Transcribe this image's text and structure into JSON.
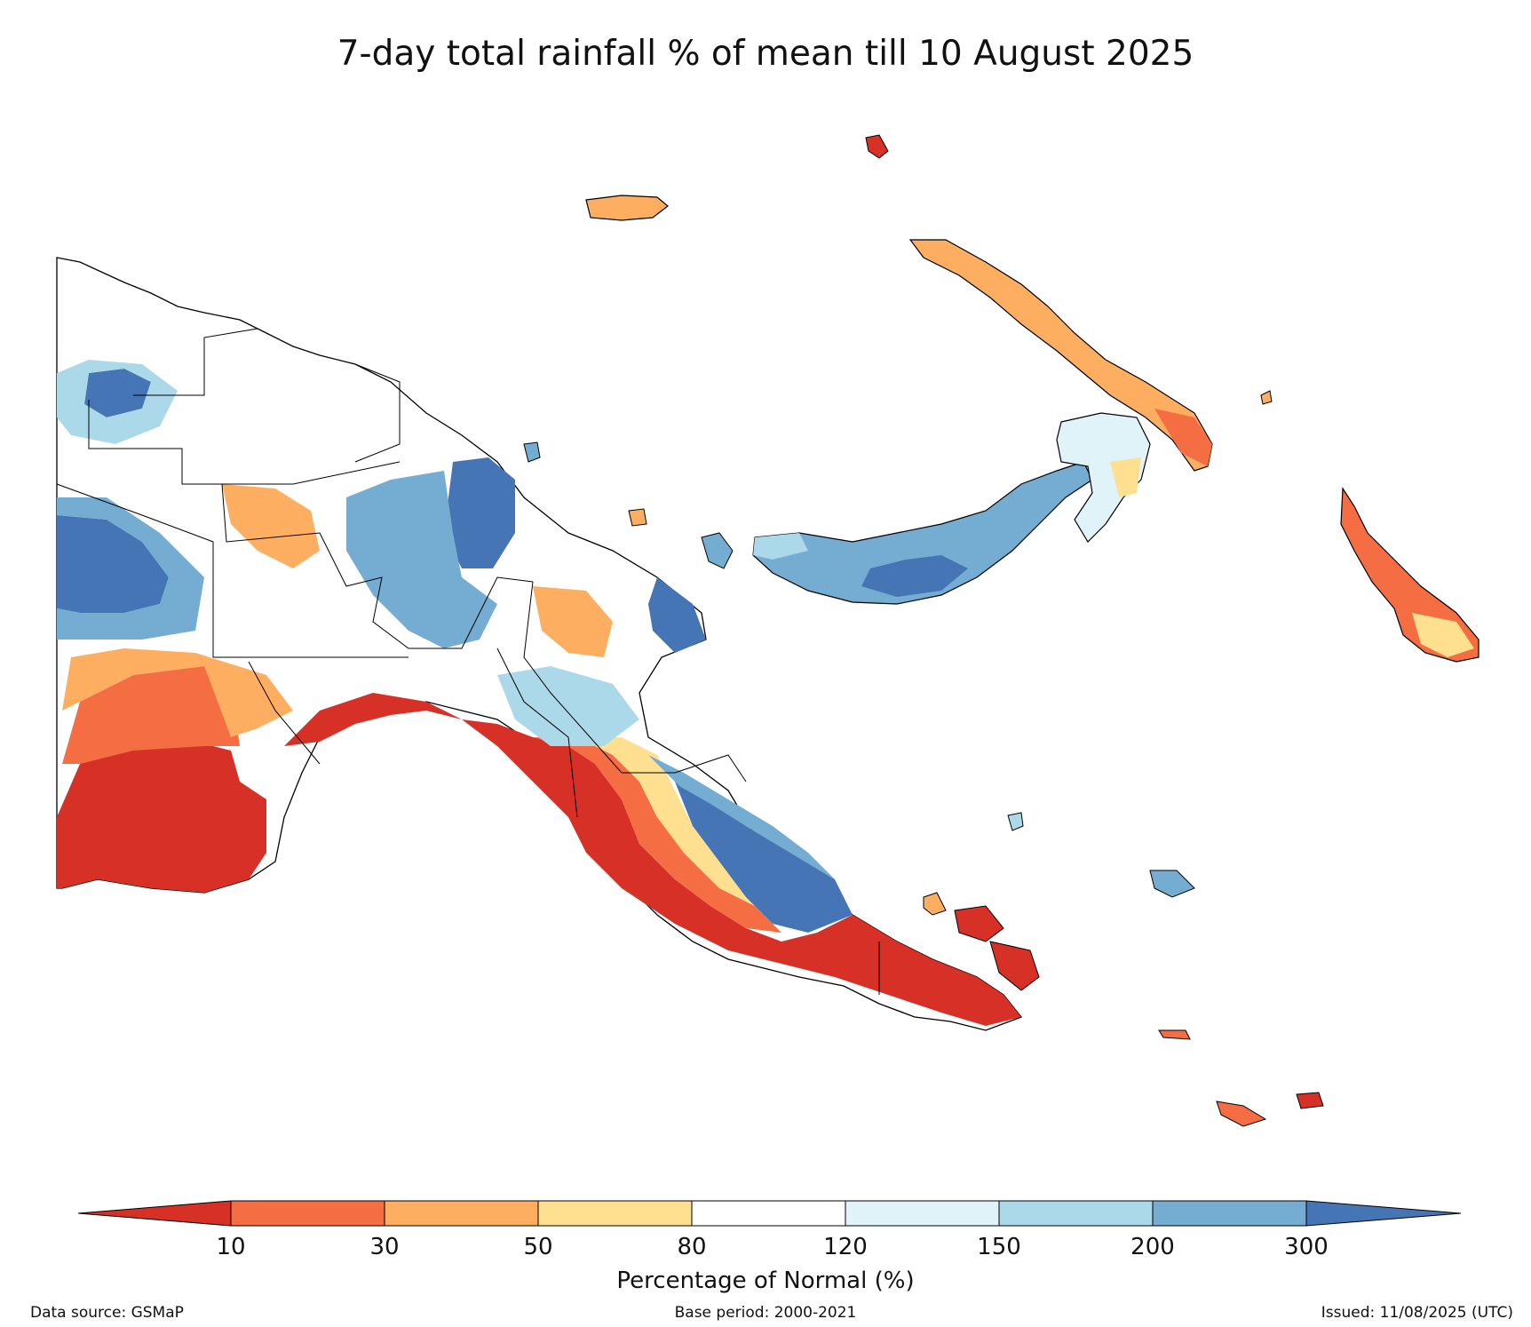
{
  "title": "7-day total rainfall % of mean till 10 August 2025",
  "colorbar": {
    "title": "Percentage of Normal (%)",
    "ticks": [
      "10",
      "30",
      "50",
      "80",
      "120",
      "150",
      "200",
      "300"
    ],
    "colors": {
      "lt10": "#d73027",
      "c10_30": "#f46d43",
      "c30_50": "#fdae61",
      "c50_80": "#fee090",
      "c80_120": "#ffffff",
      "c120_150": "#e0f3f8",
      "c150_200": "#abd9e9",
      "c200_300": "#74add1",
      "gt300": "#4575b4"
    }
  },
  "footer": {
    "source": "Data source: GSMaP",
    "base": "Base period: 2000-2021",
    "issued": "Issued: 11/08/2025 (UTC)"
  }
}
